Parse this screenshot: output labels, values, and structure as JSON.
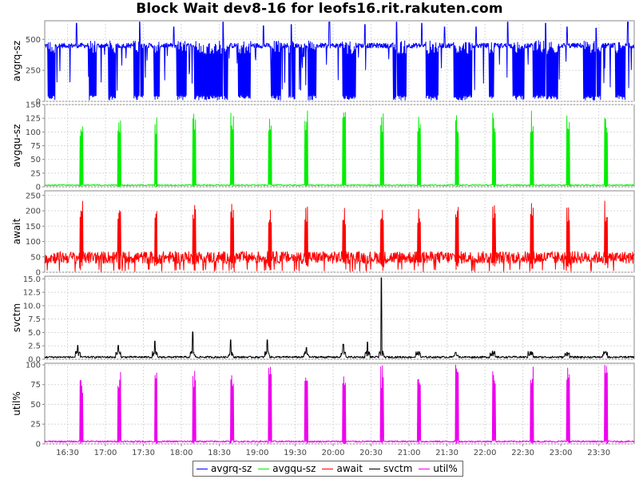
{
  "title": "Block Wait dev8-16 for leofs16.rit.rakuten.com",
  "chart_data": {
    "type": "line",
    "title": "Block Wait dev8-16 for leofs16.rit.rakuten.com",
    "x": {
      "start": "16:12",
      "end": "23:58",
      "ticks": [
        "16:30",
        "17:00",
        "17:30",
        "18:00",
        "18:30",
        "19:00",
        "19:30",
        "20:00",
        "20:30",
        "21:00",
        "21:30",
        "22:00",
        "22:30",
        "23:00",
        "23:30"
      ]
    },
    "grid": true,
    "legend_position": "bottom-center",
    "panels": [
      {
        "name": "avgrq-sz",
        "ylabel": "avgrq-sz",
        "color": "#0000ff",
        "ylim": [
          0,
          650
        ],
        "yticks": [
          0,
          250,
          500
        ],
        "baseline": 450,
        "burst_bands": [
          [
            "16:14",
            "16:20"
          ],
          [
            "16:47",
            "16:53"
          ],
          [
            "17:02",
            "17:08"
          ],
          [
            "17:22",
            "17:30"
          ],
          [
            "17:38",
            "17:43"
          ],
          [
            "17:56",
            "18:04"
          ],
          [
            "18:10",
            "18:37"
          ],
          [
            "18:45",
            "18:55"
          ],
          [
            "19:11",
            "19:19"
          ],
          [
            "19:25",
            "19:30"
          ],
          [
            "19:40",
            "19:47"
          ],
          [
            "20:07",
            "20:18"
          ],
          [
            "20:47",
            "20:58"
          ],
          [
            "21:13",
            "21:23"
          ],
          [
            "21:35",
            "21:50"
          ],
          [
            "22:03",
            "22:07"
          ],
          [
            "22:22",
            "22:31"
          ],
          [
            "22:38",
            "22:58"
          ],
          [
            "23:18",
            "23:32"
          ],
          [
            "23:43",
            "23:51"
          ]
        ],
        "burst_low": 10,
        "spike_times": [
          "16:37",
          "17:27",
          "17:54",
          "18:33",
          "19:05",
          "19:27",
          "19:57",
          "20:25",
          "20:50",
          "21:10",
          "21:28",
          "21:53",
          "22:18",
          "22:48",
          "23:05",
          "23:28",
          "23:53"
        ],
        "spike_values": [
          630,
          640,
          600,
          640,
          610,
          620,
          640,
          620,
          640,
          630,
          600,
          600,
          640,
          630,
          600,
          590,
          640
        ]
      },
      {
        "name": "avgqu-sz",
        "ylabel": "avgqu-sz",
        "color": "#00ee00",
        "ylim": [
          0,
          150
        ],
        "yticks": [
          0,
          25,
          50,
          75,
          100,
          125,
          150
        ],
        "baseline": 2,
        "burst_times": [
          "16:40",
          "17:10",
          "17:39",
          "18:09",
          "18:39",
          "19:09",
          "19:38",
          "20:08",
          "20:38",
          "21:07",
          "21:37",
          "22:06",
          "22:36",
          "23:05",
          "23:35"
        ],
        "burst_peaks": [
          128,
          140,
          130,
          140,
          140,
          142,
          140,
          140,
          140,
          140,
          140,
          141,
          140,
          141,
          140
        ]
      },
      {
        "name": "await",
        "ylabel": "await",
        "color": "#ff0000",
        "ylim": [
          0,
          265
        ],
        "yticks": [
          0,
          50,
          100,
          150,
          200,
          250
        ],
        "baseline": 40,
        "burst_times": [
          "16:40",
          "17:10",
          "17:39",
          "18:09",
          "18:39",
          "19:09",
          "19:38",
          "20:08",
          "20:38",
          "21:07",
          "21:37",
          "22:06",
          "22:36",
          "23:05",
          "23:35"
        ],
        "burst_peaks": [
          235,
          215,
          215,
          220,
          225,
          215,
          220,
          215,
          225,
          215,
          230,
          230,
          235,
          232,
          235
        ]
      },
      {
        "name": "svctm",
        "ylabel": "svctm",
        "color": "#000000",
        "ylim": [
          0,
          15.5
        ],
        "yticks": [
          0.0,
          2.5,
          5.0,
          7.5,
          10.0,
          12.5,
          15.0
        ],
        "baseline": 0.4,
        "spike_times": [
          "16:38",
          "17:10",
          "17:39",
          "18:09",
          "18:39",
          "19:08",
          "19:39",
          "20:08",
          "20:27",
          "20:38",
          "21:07",
          "21:37",
          "22:06",
          "22:36",
          "23:05",
          "23:35"
        ],
        "spike_values": [
          2.6,
          2.6,
          3.4,
          5.1,
          3.6,
          3.6,
          2.2,
          2.8,
          3.2,
          15.2,
          1.4,
          1.3,
          1.5,
          1.4,
          1.3,
          1.3
        ]
      },
      {
        "name": "util%",
        "ylabel": "util%",
        "color": "#ee00ee",
        "ylim": [
          0,
          102
        ],
        "yticks": [
          0,
          25,
          50,
          75,
          100
        ],
        "baseline": 2,
        "burst_times": [
          "16:40",
          "17:10",
          "17:39",
          "18:09",
          "18:39",
          "19:09",
          "19:38",
          "20:08",
          "20:38",
          "21:07",
          "21:37",
          "22:06",
          "22:36",
          "23:05",
          "23:35"
        ],
        "burst_peaks": [
          90,
          100,
          100,
          100,
          100,
          100,
          100,
          100,
          100,
          100,
          100,
          100,
          100,
          100,
          100
        ]
      }
    ],
    "legend": [
      {
        "label": "avgrq-sz",
        "color": "#0000ff"
      },
      {
        "label": "avgqu-sz",
        "color": "#00ee00"
      },
      {
        "label": "await",
        "color": "#ff0000"
      },
      {
        "label": "svctm",
        "color": "#000000"
      },
      {
        "label": "util%",
        "color": "#ee00ee"
      }
    ]
  }
}
